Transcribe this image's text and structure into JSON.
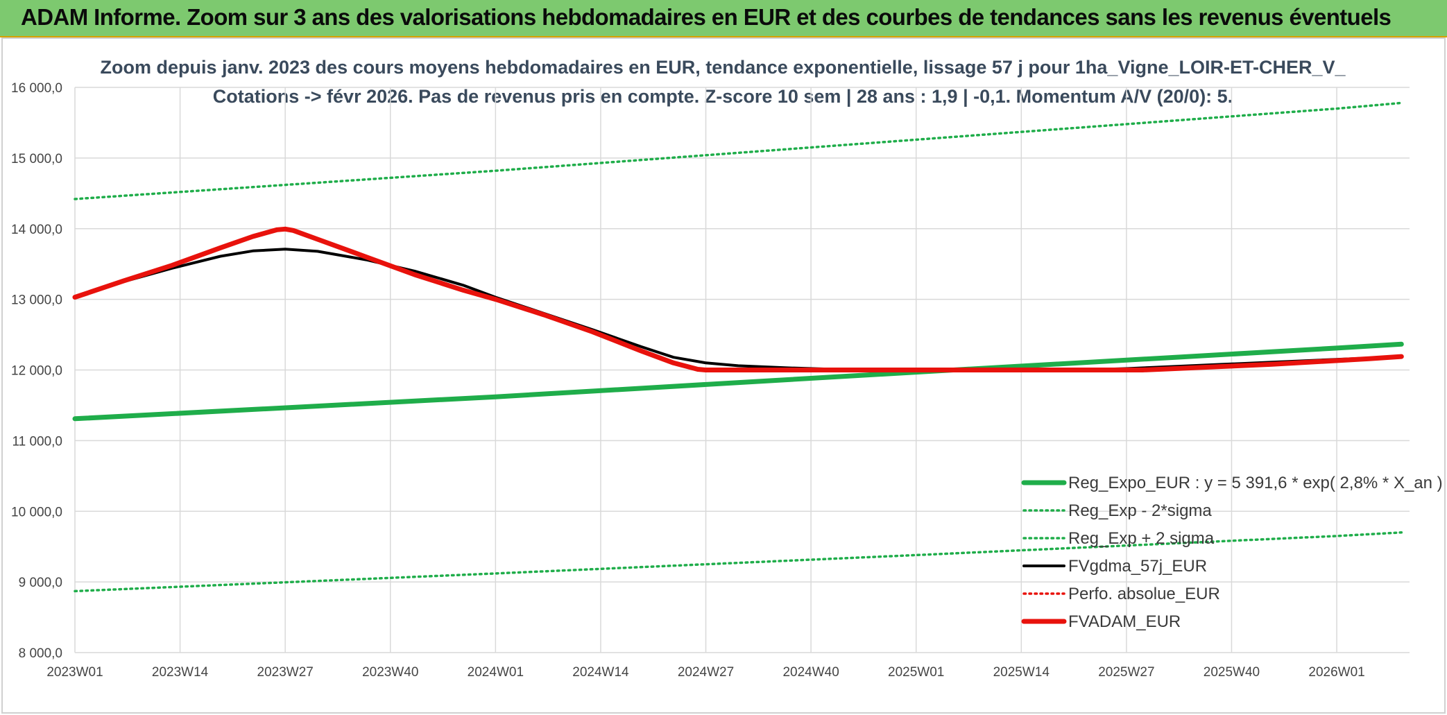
{
  "banner": {
    "title": "ADAM Informe. Zoom sur 3 ans des valorisations hebdomadaires en EUR et des courbes de tendances sans les revenus éventuels",
    "color": "#7dc96f"
  },
  "chart_data": {
    "type": "line",
    "title_line1": "Zoom depuis janv. 2023 des cours moyens hebdomadaires en EUR, tendance exponentielle, lissage 57 j pour 1ha_Vigne_LOIR-ET-CHER_V_",
    "title_line2": "Cotations -> févr 2026. Pas de revenus pris en compte. Z-score 10 sem | 28 ans : 1,9 | -0,1. Momentum A/V (20/0): 5.",
    "x_tick_labels": [
      "2023W01",
      "2023W14",
      "2023W27",
      "2023W40",
      "2024W01",
      "2024W14",
      "2024W27",
      "2024W40",
      "2025W01",
      "2025W14",
      "2025W27",
      "2025W40",
      "2026W01"
    ],
    "x_range": [
      0,
      165
    ],
    "ylim": [
      8000,
      16000
    ],
    "y_ticks": [
      {
        "value": 8000,
        "label": "8 000,0"
      },
      {
        "value": 9000,
        "label": "9 000,0"
      },
      {
        "value": 10000,
        "label": "10 000,0"
      },
      {
        "value": 11000,
        "label": "11 000,0"
      },
      {
        "value": 12000,
        "label": "12 000,0"
      },
      {
        "value": 13000,
        "label": "13 000,0"
      },
      {
        "value": 14000,
        "label": "14 000,0"
      },
      {
        "value": 15000,
        "label": "15 000,0"
      },
      {
        "value": 16000,
        "label": "16 000,0"
      }
    ],
    "grid": true,
    "legend_position": "bottom-right",
    "series": [
      {
        "name": "Reg_Expo_EUR : y = 5 391,6 * exp( 2,8% *  X_an )",
        "color": "#1fad4a",
        "style": "solid-thick",
        "x": [
          0,
          52,
          104,
          156,
          164
        ],
        "y": [
          11310,
          11620,
          11970,
          12310,
          12365
        ]
      },
      {
        "name": "Reg_Exp - 2*sigma",
        "color": "#1fad4a",
        "style": "dotted",
        "x": [
          0,
          52,
          104,
          156,
          164
        ],
        "y": [
          8870,
          9120,
          9380,
          9650,
          9700
        ]
      },
      {
        "name": "Reg_Exp + 2 sigma",
        "color": "#1fad4a",
        "style": "dotted",
        "x": [
          0,
          52,
          104,
          156,
          164
        ],
        "y": [
          14420,
          14820,
          15260,
          15700,
          15780
        ]
      },
      {
        "name": "FVgdma_57j_EUR",
        "color": "#000000",
        "style": "solid",
        "x": [
          0,
          6,
          12,
          18,
          22,
          26,
          30,
          36,
          42,
          48,
          52,
          58,
          64,
          70,
          74,
          78,
          82,
          88,
          94,
          100,
          106,
          112,
          118,
          124,
          130,
          136,
          142,
          148,
          154,
          160,
          164
        ],
        "y": [
          13030,
          13250,
          13440,
          13610,
          13685,
          13710,
          13680,
          13560,
          13400,
          13200,
          13030,
          12800,
          12570,
          12330,
          12180,
          12100,
          12060,
          12030,
          12010,
          12000,
          12000,
          12000,
          12000,
          12000,
          12020,
          12050,
          12080,
          12110,
          12140,
          12170,
          12190
        ]
      },
      {
        "name": "Perfo. absolue_EUR",
        "color": "#e8120c",
        "style": "dotted",
        "x": [],
        "y": []
      },
      {
        "name": "FVADAM_EUR",
        "color": "#e8120c",
        "style": "solid-thick",
        "x": [
          0,
          6,
          12,
          18,
          22,
          25,
          26,
          27,
          30,
          36,
          42,
          48,
          52,
          58,
          64,
          70,
          74,
          77,
          78,
          80,
          88,
          100,
          110,
          120,
          128,
          132,
          136,
          142,
          148,
          154,
          160,
          164
        ],
        "y": [
          13030,
          13260,
          13480,
          13730,
          13890,
          13985,
          13995,
          13975,
          13850,
          13600,
          13350,
          13130,
          13000,
          12780,
          12540,
          12270,
          12100,
          12010,
          12000,
          12000,
          12000,
          12000,
          12000,
          12000,
          12000,
          12000,
          12020,
          12050,
          12080,
          12120,
          12160,
          12190
        ]
      }
    ]
  }
}
